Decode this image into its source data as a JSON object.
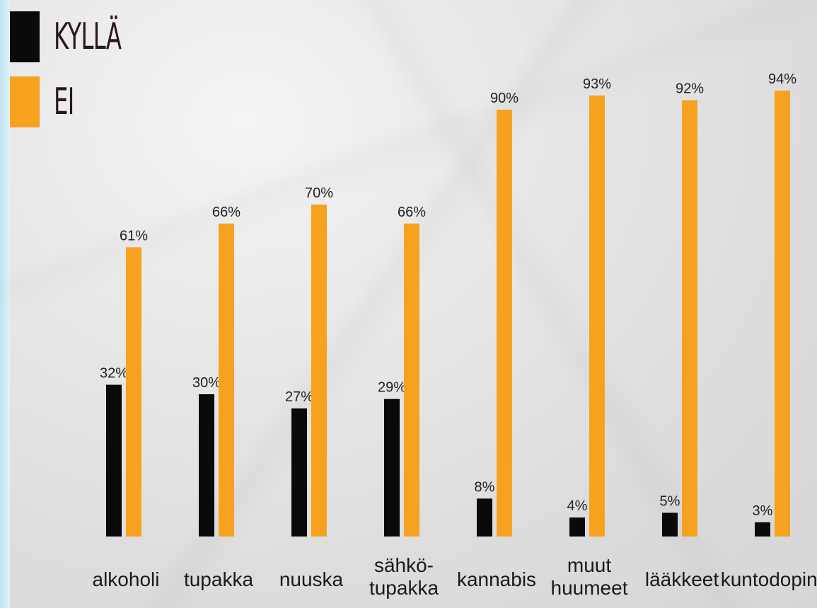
{
  "legend": {
    "yes_label": "KYLLÄ",
    "no_label": "EI",
    "yes_color": "#0a0a0a",
    "no_color": "#f6a21e"
  },
  "chart_data": {
    "type": "bar",
    "categories": [
      "alkoholi",
      "tupakka",
      "nuuska",
      "sähkö-\ntupakka",
      "kannabis",
      "muut\nhuumeet",
      "lääkkeet",
      "kuntodoping"
    ],
    "series": [
      {
        "name": "KYLLÄ",
        "values": [
          32,
          30,
          27,
          29,
          8,
          4,
          5,
          3
        ],
        "labels": [
          "32%",
          "30%",
          "27%",
          "29%",
          "8%",
          "4%",
          "5%",
          "3%"
        ]
      },
      {
        "name": "EI",
        "values": [
          61,
          66,
          70,
          66,
          90,
          93,
          92,
          94
        ],
        "labels": [
          "61%",
          "66%",
          "70%",
          "66%",
          "90%",
          "93%",
          "92%",
          "94%"
        ]
      }
    ],
    "ylim": [
      0,
      100
    ],
    "legend_position": "top-left",
    "grid": false
  }
}
